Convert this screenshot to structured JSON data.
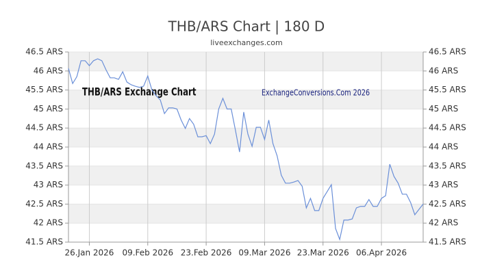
{
  "chart_data": {
    "type": "line",
    "title": "THB/ARS Chart | 180 D",
    "subtitle": "liveexchanges.com",
    "annotations": [
      "THB/ARS Exchange Chart",
      "ExchangeConversions.Com 2026"
    ],
    "x": [
      "2026-01-21",
      "2026-01-22",
      "2026-01-23",
      "2026-01-24",
      "2026-01-25",
      "2026-01-26",
      "2026-01-27",
      "2026-01-28",
      "2026-01-29",
      "2026-01-30",
      "2026-01-31",
      "2026-02-01",
      "2026-02-02",
      "2026-02-03",
      "2026-02-04",
      "2026-02-05",
      "2026-02-06",
      "2026-02-07",
      "2026-02-08",
      "2026-02-09",
      "2026-02-10",
      "2026-02-11",
      "2026-02-12",
      "2026-02-13",
      "2026-02-14",
      "2026-02-15",
      "2026-02-16",
      "2026-02-17",
      "2026-02-18",
      "2026-02-19",
      "2026-02-20",
      "2026-02-21",
      "2026-02-22",
      "2026-02-23",
      "2026-02-24",
      "2026-02-25",
      "2026-02-26",
      "2026-02-27",
      "2026-02-28",
      "2026-03-01",
      "2026-03-02",
      "2026-03-03",
      "2026-03-04",
      "2026-03-05",
      "2026-03-06",
      "2026-03-07",
      "2026-03-08",
      "2026-03-09",
      "2026-03-10",
      "2026-03-11",
      "2026-03-12",
      "2026-03-13",
      "2026-03-14",
      "2026-03-15",
      "2026-03-16",
      "2026-03-17",
      "2026-03-18",
      "2026-03-19",
      "2026-03-20",
      "2026-03-21",
      "2026-03-22",
      "2026-03-23",
      "2026-03-24",
      "2026-03-25",
      "2026-03-26",
      "2026-03-27",
      "2026-03-28",
      "2026-03-29",
      "2026-03-30",
      "2026-03-31",
      "2026-04-01",
      "2026-04-02",
      "2026-04-03",
      "2026-04-04",
      "2026-04-05",
      "2026-04-06",
      "2026-04-07",
      "2026-04-08",
      "2026-04-09",
      "2026-04-10",
      "2026-04-11",
      "2026-04-12",
      "2026-04-13",
      "2026-04-14",
      "2026-04-15",
      "2026-04-16"
    ],
    "series": [
      {
        "name": "THB/ARS",
        "color": "#6a8fd8",
        "values": [
          46.07,
          45.67,
          45.85,
          46.27,
          46.27,
          46.14,
          46.27,
          46.32,
          46.27,
          46.03,
          45.82,
          45.82,
          45.78,
          45.98,
          45.71,
          45.64,
          45.6,
          45.57,
          45.6,
          45.87,
          45.5,
          45.35,
          45.24,
          44.88,
          45.03,
          45.03,
          45.0,
          44.71,
          44.49,
          44.75,
          44.6,
          44.27,
          44.27,
          44.3,
          44.09,
          44.34,
          45.0,
          45.28,
          45.0,
          45.0,
          44.45,
          43.87,
          44.92,
          44.34,
          44.02,
          44.52,
          44.52,
          44.2,
          44.71,
          44.09,
          43.77,
          43.26,
          43.05,
          43.05,
          43.08,
          43.12,
          42.97,
          42.4,
          42.65,
          42.33,
          42.33,
          42.65,
          42.83,
          43.01,
          41.86,
          41.57,
          42.08,
          42.08,
          42.11,
          42.4,
          42.44,
          42.44,
          42.62,
          42.44,
          42.44,
          42.65,
          42.72,
          43.55,
          43.23,
          43.05,
          42.76,
          42.76,
          42.54,
          42.22,
          42.36,
          42.5
        ]
      }
    ],
    "xlim": [
      "2026-01-21",
      "2026-04-16"
    ],
    "xticks": [
      {
        "value": "2026-01-26",
        "label": "26.Jan 2026"
      },
      {
        "value": "2026-02-09",
        "label": "09.Feb 2026"
      },
      {
        "value": "2026-02-23",
        "label": "23.Feb 2026"
      },
      {
        "value": "2026-03-09",
        "label": "09.Mar 2026"
      },
      {
        "value": "2026-03-23",
        "label": "23.Mar 2026"
      },
      {
        "value": "2026-04-06",
        "label": "06.Apr 2026"
      }
    ],
    "ylim": [
      41.5,
      46.5
    ],
    "yticks": [
      {
        "value": 41.5,
        "label": "41.5 ARS"
      },
      {
        "value": 42,
        "label": "42 ARS"
      },
      {
        "value": 42.5,
        "label": "42.5 ARS"
      },
      {
        "value": 43,
        "label": "43 ARS"
      },
      {
        "value": 43.5,
        "label": "43.5 ARS"
      },
      {
        "value": 44,
        "label": "44 ARS"
      },
      {
        "value": 44.5,
        "label": "44.5 ARS"
      },
      {
        "value": 45,
        "label": "45 ARS"
      },
      {
        "value": 45.5,
        "label": "45.5 ARS"
      },
      {
        "value": 46,
        "label": "46 ARS"
      },
      {
        "value": 46.5,
        "label": "46.5 ARS"
      }
    ],
    "grid": true
  }
}
